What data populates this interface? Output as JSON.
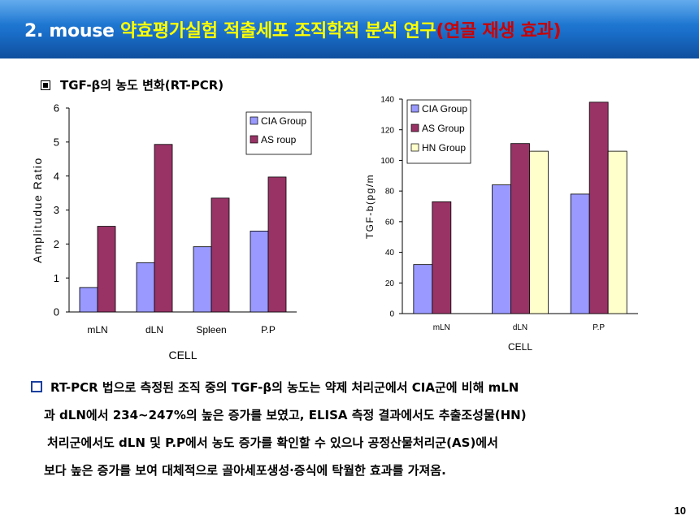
{
  "title": {
    "number": "2. mouse",
    "main": "약효평가실험 적출세포 조직학적 분석 연구",
    "paren": "(연골 재생 효과)"
  },
  "subtitle": "TGF-β의 농도 변화(RT-PCR)",
  "colors": {
    "cia": "#9999ff",
    "as": "#993366",
    "hn": "#ffffcc",
    "title_bg": "#1a6fca",
    "title_yellow": "#ffff00",
    "title_red": "#cc0000"
  },
  "chart_data": [
    {
      "type": "bar",
      "categories": [
        "mLN",
        "dLN",
        "Spleen",
        "P.P"
      ],
      "series": [
        {
          "name": "CIA Group",
          "values": [
            0.72,
            1.45,
            1.92,
            2.38
          ]
        },
        {
          "name": "AS roup",
          "values": [
            2.52,
            4.93,
            3.35,
            3.97
          ]
        }
      ],
      "ylim": [
        0,
        6
      ],
      "yticks": [
        "0",
        "1",
        "2",
        "3",
        "4",
        "5",
        "6"
      ],
      "xlabel": "CELL",
      "ylabel": "Amplitudue Ratio",
      "legend": "top-right"
    },
    {
      "type": "bar",
      "categories": [
        "mLN",
        "dLN",
        "P.P"
      ],
      "series": [
        {
          "name": "CIA Group",
          "values": [
            32,
            84,
            78
          ]
        },
        {
          "name": "AS Group",
          "values": [
            73,
            111,
            138
          ]
        },
        {
          "name": "HN Group",
          "values": [
            null,
            106,
            106
          ]
        }
      ],
      "ylim": [
        0,
        140
      ],
      "yticks": [
        "0",
        "20",
        "40",
        "60",
        "80",
        "100",
        "120",
        "140"
      ],
      "xlabel": "CELL",
      "ylabel": "TGF-b(pg/m",
      "legend": "top-left"
    }
  ],
  "description": {
    "line1": "RT-PCR 법으로 측정된 조직 중의 TGF-β의 농도는 약제 처리군에서 CIA군에 비해 mLN",
    "line2": "과 dLN에서 234~247%의 높은 증가를 보였고, ELISA 측정 결과에서도 추출조성물(HN)",
    "line3": "처리군에서도 dLN 및 P.P에서 농도 증가를 확인할 수 있으나 공정산물처리군(AS)에서",
    "line4": "보다 높은 증가를 보여 대체적으로 골아세포생성·증식에 탁월한 효과를 가져옴."
  },
  "page_number": "10"
}
